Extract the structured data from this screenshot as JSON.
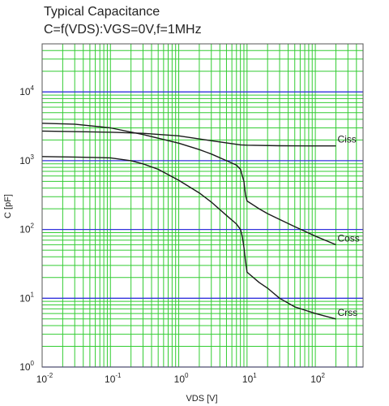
{
  "chart_data": {
    "type": "line",
    "title": "Typical Capacitance",
    "subtitle": "C=f(VDS):VGS=0V,f=1MHz",
    "xlabel": "VDS [V]",
    "ylabel": "C [pF]",
    "xscale": "log",
    "yscale": "log",
    "xlim": [
      0.01,
      500
    ],
    "ylim": [
      1,
      50000
    ],
    "grid": true,
    "x_ticks": [
      {
        "base": "10",
        "exp": "-2"
      },
      {
        "base": "10",
        "exp": "-1"
      },
      {
        "base": "10",
        "exp": "0"
      },
      {
        "base": "10",
        "exp": "1"
      },
      {
        "base": "10",
        "exp": "2"
      }
    ],
    "y_ticks": [
      {
        "base": "10",
        "exp": "0"
      },
      {
        "base": "10",
        "exp": "1"
      },
      {
        "base": "10",
        "exp": "2"
      },
      {
        "base": "10",
        "exp": "3"
      },
      {
        "base": "10",
        "exp": "4"
      }
    ],
    "colors": {
      "minor_grid": "#33cc33",
      "decade_grid": "#3333dd",
      "curve": "#1a1a1a",
      "frame": "#555555"
    },
    "series": [
      {
        "name": "Ciss",
        "label": "Ciss",
        "x": [
          0.01,
          0.03,
          0.1,
          0.3,
          1,
          3,
          8,
          10,
          30,
          100,
          200
        ],
        "y": [
          2700,
          2650,
          2600,
          2500,
          2300,
          1950,
          1700,
          1680,
          1650,
          1640,
          1640
        ]
      },
      {
        "name": "Coss",
        "label": "Coss",
        "x": [
          0.01,
          0.03,
          0.1,
          0.3,
          1,
          2,
          3,
          5,
          7,
          8,
          9,
          9.5,
          10,
          15,
          20,
          30,
          50,
          100,
          200
        ],
        "y": [
          3500,
          3400,
          3000,
          2400,
          1800,
          1450,
          1250,
          1000,
          860,
          750,
          500,
          320,
          260,
          200,
          170,
          140,
          110,
          80,
          60
        ]
      },
      {
        "name": "Crss",
        "label": "Crss",
        "x": [
          0.01,
          0.03,
          0.1,
          0.2,
          0.3,
          0.5,
          1,
          2,
          3,
          5,
          7,
          8,
          8.5,
          9,
          9.5,
          10,
          15,
          20,
          30,
          50,
          100,
          200
        ],
        "y": [
          1150,
          1130,
          1100,
          1000,
          900,
          750,
          520,
          340,
          250,
          160,
          120,
          100,
          80,
          55,
          35,
          24,
          17,
          14,
          10,
          7.5,
          6,
          5
        ]
      }
    ]
  }
}
